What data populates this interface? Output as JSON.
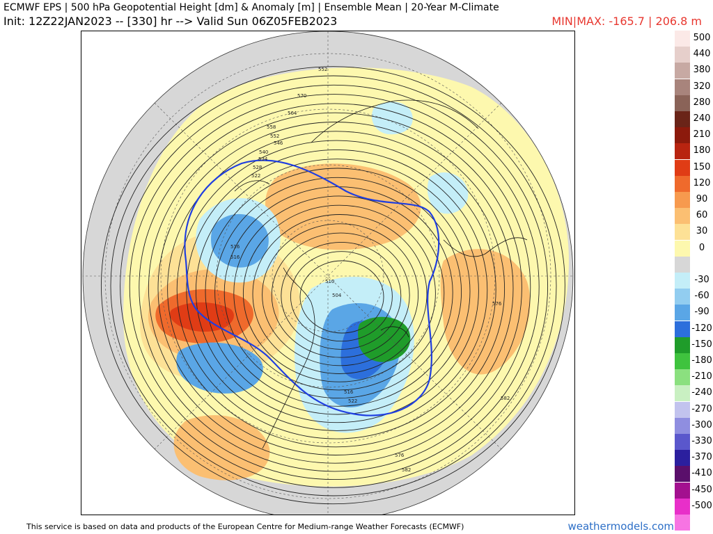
{
  "header": {
    "title": "ECMWF EPS | 500 hPa Geopotential Height [dm] & Anomaly [m] | Ensemble Mean | 20-Year M-Climate",
    "init": "Init: 12Z22JAN2023 -- [330] hr --> Valid Sun 06Z05FEB2023",
    "minmax": "MIN|MAX: -165.7 | 206.8 m"
  },
  "colorbar": {
    "entries": [
      {
        "label": "500",
        "color": "#fbe9e7"
      },
      {
        "label": "440",
        "color": "#e6cfcb"
      },
      {
        "label": "380",
        "color": "#c7a9a3"
      },
      {
        "label": "320",
        "color": "#a8847c"
      },
      {
        "label": "280",
        "color": "#8a6358"
      },
      {
        "label": "240",
        "color": "#6a2418"
      },
      {
        "label": "210",
        "color": "#8c1a0c"
      },
      {
        "label": "180",
        "color": "#b82410"
      },
      {
        "label": "150",
        "color": "#e03c15"
      },
      {
        "label": "120",
        "color": "#ef6a2c"
      },
      {
        "label": "90",
        "color": "#f79a4e"
      },
      {
        "label": "60",
        "color": "#fbbf72"
      },
      {
        "label": "30",
        "color": "#fde196"
      },
      {
        "label": "0",
        "color": "#fdf8ae"
      },
      {
        "label": "",
        "color": "#d7d7d7"
      },
      {
        "label": "-30",
        "color": "#c4eef8"
      },
      {
        "label": "-60",
        "color": "#92cdf0"
      },
      {
        "label": "-90",
        "color": "#5aa6e6"
      },
      {
        "label": "-120",
        "color": "#2c6fdc"
      },
      {
        "label": "-150",
        "color": "#1f9c2a"
      },
      {
        "label": "-180",
        "color": "#3fc33e"
      },
      {
        "label": "-210",
        "color": "#8be07f"
      },
      {
        "label": "-240",
        "color": "#c9f0c2"
      },
      {
        "label": "-270",
        "color": "#c2c3ee"
      },
      {
        "label": "-300",
        "color": "#8f8ee0"
      },
      {
        "label": "-330",
        "color": "#5a57cc"
      },
      {
        "label": "-370",
        "color": "#2b1f9e"
      },
      {
        "label": "-410",
        "color": "#5a0f6b"
      },
      {
        "label": "-450",
        "color": "#a3108f"
      },
      {
        "label": "-500",
        "color": "#e82fc9"
      },
      {
        "label": "",
        "color": "#f774e3"
      }
    ]
  },
  "map": {
    "contour_labels": [
      "552",
      "570",
      "564",
      "558",
      "552",
      "546",
      "540",
      "534",
      "528",
      "522",
      "516",
      "516",
      "510",
      "504",
      "576",
      "582",
      "582",
      "576",
      "516",
      "522"
    ]
  },
  "footer": {
    "note": "This service is based on data and products of the European Centre for Medium-range Weather Forecasts (ECMWF)",
    "credit": "weathermodels.com"
  }
}
